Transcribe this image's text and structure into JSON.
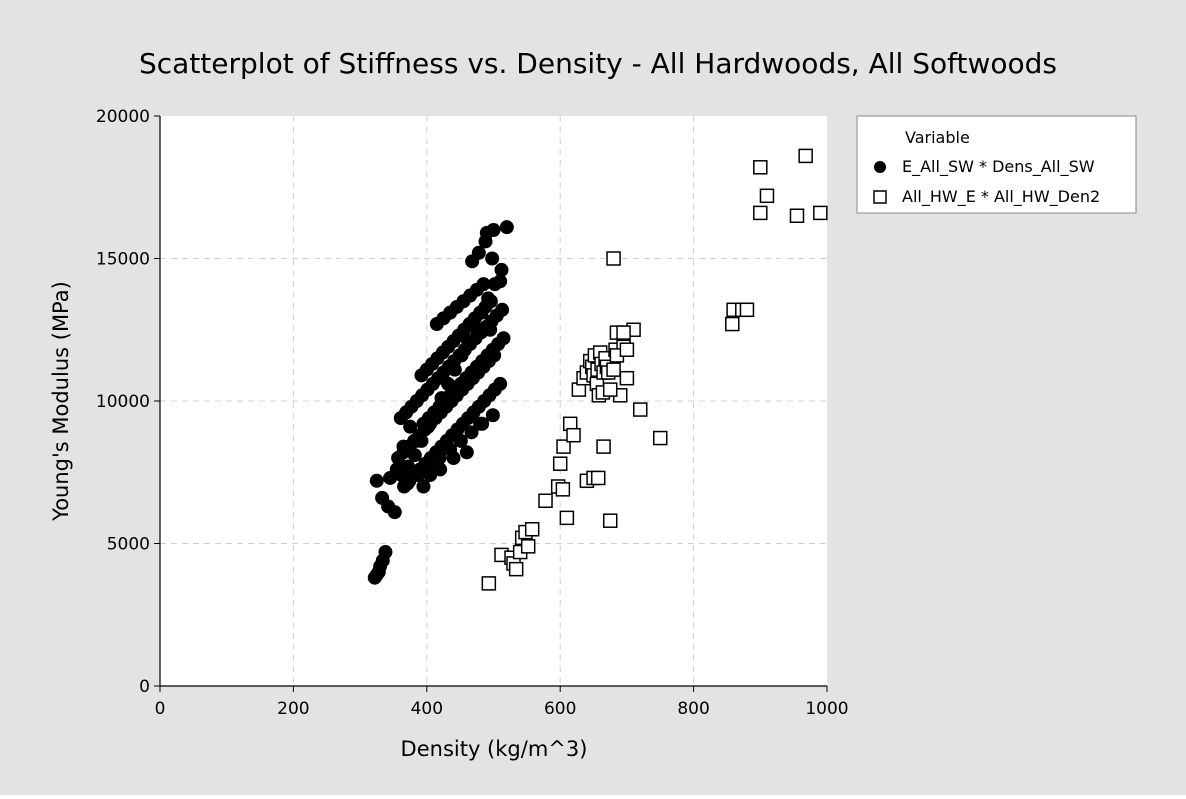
{
  "chart_data": {
    "type": "scatter",
    "title": "Scatterplot of Stiffness vs. Density - All Hardwoods, All Softwoods",
    "xlabel": "Density (kg/m^3)",
    "ylabel": "Young's Modulus (MPa)",
    "xlim": [
      0,
      1000
    ],
    "ylim": [
      0,
      20000
    ],
    "xticks": [
      0,
      200,
      400,
      600,
      800,
      1000
    ],
    "yticks": [
      0,
      5000,
      10000,
      15000,
      20000
    ],
    "grid": true,
    "legend": {
      "title": "Variable",
      "placement": "right"
    },
    "colors": {
      "background": "#e3e3e3",
      "plot": "#ffffff",
      "grid": "#d0d0d0",
      "marker": "#000000"
    },
    "series": [
      {
        "name": "E_All_SW * Dens_All_SW",
        "marker": "filled-circle",
        "x": [
          322,
          325,
          328,
          330,
          334,
          338,
          325,
          333,
          342,
          352,
          362,
          372,
          382,
          392,
          402,
          412,
          422,
          432,
          442,
          452,
          462,
          472,
          482,
          492,
          502,
          512,
          520,
          357,
          365,
          373,
          381,
          389,
          397,
          405,
          413,
          421,
          429,
          437,
          445,
          453,
          461,
          469,
          477,
          485,
          493,
          501,
          361,
          369,
          377,
          385,
          393,
          401,
          409,
          417,
          425,
          433,
          441,
          449,
          457,
          465,
          473,
          481,
          489,
          497,
          505,
          513,
          366,
          374,
          382,
          390,
          398,
          406,
          414,
          422,
          430,
          438,
          446,
          454,
          462,
          470,
          478,
          486,
          494,
          502,
          510,
          395,
          403,
          411,
          419,
          427,
          435,
          443,
          451,
          459,
          467,
          475,
          483,
          491,
          499,
          507,
          515,
          392,
          400,
          408,
          416,
          424,
          432,
          440,
          448,
          456,
          464,
          472,
          480,
          488,
          496,
          371,
          387,
          403,
          419,
          435,
          451,
          467,
          483,
          499,
          415,
          425,
          435,
          445,
          455,
          465,
          475,
          485,
          345,
          355,
          365,
          375,
          385,
          395,
          405,
          420,
          440,
          460,
          480,
          495,
          510,
          490,
          500,
          468,
          478,
          488,
          498
        ],
        "y": [
          3800,
          3900,
          4000,
          4200,
          4400,
          4700,
          7200,
          6600,
          6300,
          6100,
          7400,
          7700,
          8100,
          8600,
          9100,
          9600,
          10100,
          10600,
          11100,
          11600,
          12100,
          12600,
          13100,
          13600,
          14100,
          14600,
          16100,
          8000,
          8200,
          8400,
          8600,
          8800,
          9000,
          9200,
          9400,
          9600,
          9800,
          10000,
          10200,
          10400,
          10600,
          10800,
          11000,
          11200,
          11400,
          11600,
          9400,
          9600,
          9800,
          10000,
          10200,
          10400,
          10600,
          10800,
          11000,
          11200,
          11400,
          11600,
          11800,
          12000,
          12200,
          12400,
          12600,
          12800,
          13000,
          13200,
          7000,
          7200,
          7400,
          7600,
          7800,
          8000,
          8200,
          8400,
          8600,
          8800,
          9000,
          9200,
          9400,
          9600,
          9800,
          10000,
          10200,
          10400,
          10600,
          9200,
          9400,
          9600,
          9800,
          10000,
          10200,
          10400,
          10600,
          10800,
          11000,
          11200,
          11400,
          11600,
          11800,
          12000,
          12200,
          10900,
          11100,
          11300,
          11500,
          11700,
          11900,
          12100,
          12300,
          12500,
          12700,
          12900,
          13100,
          13300,
          13500,
          7100,
          7400,
          7700,
          8000,
          8300,
          8600,
          8900,
          9200,
          9500,
          12700,
          12900,
          13100,
          13300,
          13500,
          13700,
          13900,
          14100,
          7300,
          7600,
          8400,
          9100,
          8600,
          7000,
          7400,
          7600,
          8000,
          8200,
          9200,
          12500,
          14200,
          15900,
          16000,
          14900,
          15200,
          15600,
          15000
        ]
      },
      {
        "name": "All_HW_E * All_HW_Den2",
        "marker": "open-square",
        "x": [
          493,
          512,
          527,
          530,
          534,
          540,
          543,
          548,
          552,
          558,
          578,
          597,
          600,
          605,
          610,
          615,
          620,
          628,
          635,
          640,
          645,
          648,
          650,
          652,
          655,
          656,
          658,
          660,
          662,
          664,
          665,
          668,
          670,
          672,
          675,
          680,
          683,
          685,
          690,
          695,
          700,
          710,
          720,
          750,
          604,
          640,
          650,
          657,
          665,
          675,
          680,
          685,
          695,
          700,
          858,
          860,
          873,
          880,
          900,
          910,
          900,
          955,
          968,
          990
        ],
        "y": [
          3600,
          4600,
          4500,
          4300,
          4100,
          4700,
          5200,
          5400,
          4900,
          5500,
          6500,
          7000,
          7800,
          8400,
          5900,
          9200,
          8800,
          10400,
          10800,
          11000,
          11400,
          11200,
          10900,
          11600,
          10600,
          11100,
          10200,
          11700,
          11300,
          10300,
          11000,
          11500,
          11200,
          11000,
          5800,
          15000,
          11800,
          12400,
          10200,
          11900,
          10800,
          12500,
          9700,
          8700,
          6900,
          7200,
          7300,
          7300,
          8400,
          10400,
          11100,
          11600,
          12400,
          11800,
          12700,
          13200,
          13200,
          13200,
          18200,
          17200,
          16600,
          16500,
          18600,
          16600
        ]
      }
    ]
  }
}
